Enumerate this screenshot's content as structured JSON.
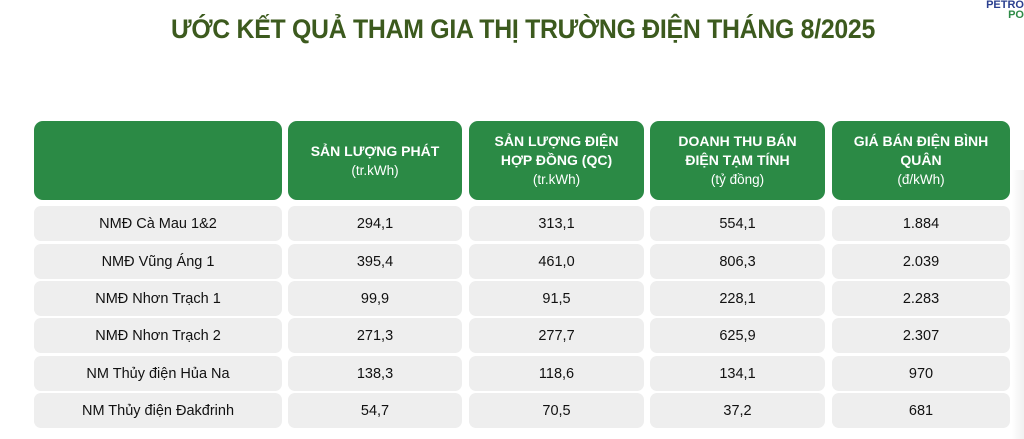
{
  "title": "ƯỚC KẾT QUẢ THAM GIA THỊ TRƯỜNG ĐIỆN THÁNG 8/2025",
  "logo": {
    "line1": "PETRO",
    "line2": "PO"
  },
  "colors": {
    "header_bg": "#2b8a45",
    "title": "#3c5a1e",
    "row_bg": "#eeeeee"
  },
  "table": {
    "columns": [
      {
        "title": "",
        "unit": ""
      },
      {
        "title": "SẢN LƯỢNG PHÁT",
        "unit": "(tr.kWh)"
      },
      {
        "title": "SẢN LƯỢNG ĐIỆN HỢP ĐỒNG (QC)",
        "unit": "(tr.kWh)"
      },
      {
        "title": "DOANH THU BÁN ĐIỆN TẠM TÍNH",
        "unit": "(tỷ đồng)"
      },
      {
        "title": "GIÁ BÁN ĐIỆN BÌNH QUÂN",
        "unit": "(đ/kWh)"
      }
    ],
    "rows": [
      [
        "NMĐ Cà Mau 1&2",
        "294,1",
        "313,1",
        "554,1",
        "1.884"
      ],
      [
        "NMĐ Vũng Áng 1",
        "395,4",
        "461,0",
        "806,3",
        "2.039"
      ],
      [
        "NMĐ Nhơn Trạch 1",
        "99,9",
        "91,5",
        "228,1",
        "2.283"
      ],
      [
        "NMĐ Nhơn Trạch 2",
        "271,3",
        "277,7",
        "625,9",
        "2.307"
      ],
      [
        "NM Thủy điện Hủa Na",
        "138,3",
        "118,6",
        "134,1",
        "970"
      ],
      [
        "NM Thủy điện Đakđrinh",
        "54,7",
        "70,5",
        "37,2",
        "681"
      ]
    ]
  }
}
